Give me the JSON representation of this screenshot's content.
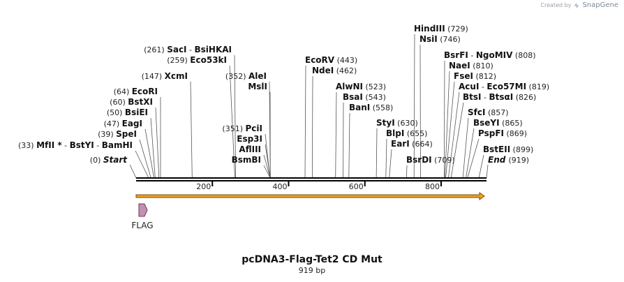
{
  "credit": {
    "prefix": "Created by",
    "brand": "SnapGene"
  },
  "title": "pcDNA3-Flag-Tet2 CD Mut",
  "subtitle": "919 bp",
  "sequence_length": 919,
  "colors": {
    "backbone": "#000000",
    "arrow_fill": "#f0a020",
    "arrow_border": "#7a4f10",
    "flag_fill": "#c490b0",
    "flag_border": "#6a3a5a"
  },
  "start_label": {
    "position": "(0)",
    "name": "Start"
  },
  "end_label": {
    "name": "End",
    "position": "(919)"
  },
  "ticks": [
    {
      "bp": 200,
      "label": "200"
    },
    {
      "bp": 400,
      "label": "400"
    },
    {
      "bp": 600,
      "label": "600"
    },
    {
      "bp": 800,
      "label": "800"
    }
  ],
  "sites": [
    {
      "id": "s1",
      "parts": [
        {
          "t": "(33)",
          "k": "pos"
        },
        {
          "t": "MfII *",
          "k": "name"
        },
        {
          "t": " - ",
          "k": "pos"
        },
        {
          "t": "BstYI",
          "k": "name"
        },
        {
          "t": " - ",
          "k": "pos"
        },
        {
          "t": "BamHI",
          "k": "name"
        }
      ],
      "cut": 33
    },
    {
      "id": "s2",
      "parts": [
        {
          "t": "(39)",
          "k": "pos"
        },
        {
          "t": "SpeI",
          "k": "name"
        }
      ],
      "cut": 39
    },
    {
      "id": "s3",
      "parts": [
        {
          "t": "(47)",
          "k": "pos"
        },
        {
          "t": "EagI",
          "k": "name"
        }
      ],
      "cut": 47
    },
    {
      "id": "s4",
      "parts": [
        {
          "t": "(50)",
          "k": "pos"
        },
        {
          "t": "BsiEI",
          "k": "name"
        }
      ],
      "cut": 50
    },
    {
      "id": "s5",
      "parts": [
        {
          "t": "(60)",
          "k": "pos"
        },
        {
          "t": "BstXI",
          "k": "name"
        }
      ],
      "cut": 60
    },
    {
      "id": "s6",
      "parts": [
        {
          "t": "(64)",
          "k": "pos"
        },
        {
          "t": "EcoRI",
          "k": "name"
        }
      ],
      "cut": 64
    },
    {
      "id": "s7",
      "parts": [
        {
          "t": "(147)",
          "k": "pos"
        },
        {
          "t": "XcmI",
          "k": "name"
        }
      ],
      "cut": 147
    },
    {
      "id": "s8",
      "parts": [
        {
          "t": "(259)",
          "k": "pos"
        },
        {
          "t": "Eco53kI",
          "k": "name"
        }
      ],
      "cut": 259
    },
    {
      "id": "s9",
      "parts": [
        {
          "t": "(261)",
          "k": "pos"
        },
        {
          "t": "SacI",
          "k": "name"
        },
        {
          "t": " - ",
          "k": "pos"
        },
        {
          "t": "BsiHKAI",
          "k": "name"
        }
      ],
      "cut": 261
    },
    {
      "id": "s10",
      "parts": [
        {
          "t": "(351)",
          "k": "pos"
        },
        {
          "t": "PciI",
          "k": "name"
        }
      ],
      "cut": 351
    },
    {
      "id": "s11",
      "parts": [
        {
          "t": "Esp3I",
          "k": "name"
        }
      ],
      "cut": 352
    },
    {
      "id": "s12",
      "parts": [
        {
          "t": "AflIII",
          "k": "name"
        }
      ],
      "cut": 352
    },
    {
      "id": "s13",
      "parts": [
        {
          "t": "BsmBI",
          "k": "name"
        }
      ],
      "cut": 352
    },
    {
      "id": "s14",
      "parts": [
        {
          "t": "(352)",
          "k": "pos"
        },
        {
          "t": "AleI",
          "k": "name"
        }
      ],
      "cut": 352
    },
    {
      "id": "s15",
      "parts": [
        {
          "t": "MslI",
          "k": "name"
        }
      ],
      "cut": 352
    },
    {
      "id": "s16",
      "parts": [
        {
          "t": "EcoRV",
          "k": "name"
        },
        {
          "t": "(443)",
          "k": "pos"
        }
      ],
      "cut": 443
    },
    {
      "id": "s17",
      "parts": [
        {
          "t": "NdeI",
          "k": "name"
        },
        {
          "t": "(462)",
          "k": "pos"
        }
      ],
      "cut": 462
    },
    {
      "id": "s18",
      "parts": [
        {
          "t": "AlwNI",
          "k": "name"
        },
        {
          "t": "(523)",
          "k": "pos"
        }
      ],
      "cut": 523
    },
    {
      "id": "s19",
      "parts": [
        {
          "t": "BsaI",
          "k": "name"
        },
        {
          "t": "(543)",
          "k": "pos"
        }
      ],
      "cut": 543
    },
    {
      "id": "s20",
      "parts": [
        {
          "t": "BanI",
          "k": "name"
        },
        {
          "t": "(558)",
          "k": "pos"
        }
      ],
      "cut": 558
    },
    {
      "id": "s21",
      "parts": [
        {
          "t": "StyI",
          "k": "name"
        },
        {
          "t": "(630)",
          "k": "pos"
        }
      ],
      "cut": 630
    },
    {
      "id": "s22",
      "parts": [
        {
          "t": "BlpI",
          "k": "name"
        },
        {
          "t": "(655)",
          "k": "pos"
        }
      ],
      "cut": 655
    },
    {
      "id": "s23",
      "parts": [
        {
          "t": "EarI",
          "k": "name"
        },
        {
          "t": "(664)",
          "k": "pos"
        }
      ],
      "cut": 664
    },
    {
      "id": "s24",
      "parts": [
        {
          "t": "BsrDI",
          "k": "name"
        },
        {
          "t": "(709)",
          "k": "pos"
        }
      ],
      "cut": 709
    },
    {
      "id": "s25",
      "parts": [
        {
          "t": "HindIII",
          "k": "name"
        },
        {
          "t": "(729)",
          "k": "pos"
        }
      ],
      "cut": 729
    },
    {
      "id": "s26",
      "parts": [
        {
          "t": "NsiI",
          "k": "name"
        },
        {
          "t": "(746)",
          "k": "pos"
        }
      ],
      "cut": 746
    },
    {
      "id": "s27",
      "parts": [
        {
          "t": "BsrFI",
          "k": "name"
        },
        {
          "t": " - ",
          "k": "pos"
        },
        {
          "t": "NgoMIV",
          "k": "name"
        },
        {
          "t": "(808)",
          "k": "pos"
        }
      ],
      "cut": 808
    },
    {
      "id": "s28",
      "parts": [
        {
          "t": "NaeI",
          "k": "name"
        },
        {
          "t": "(810)",
          "k": "pos"
        }
      ],
      "cut": 810
    },
    {
      "id": "s29",
      "parts": [
        {
          "t": "FseI",
          "k": "name"
        },
        {
          "t": "(812)",
          "k": "pos"
        }
      ],
      "cut": 812
    },
    {
      "id": "s30",
      "parts": [
        {
          "t": "AcuI",
          "k": "name"
        },
        {
          "t": " - ",
          "k": "pos"
        },
        {
          "t": "Eco57MI",
          "k": "name"
        },
        {
          "t": "(819)",
          "k": "pos"
        }
      ],
      "cut": 819
    },
    {
      "id": "s31",
      "parts": [
        {
          "t": "BtsI",
          "k": "name"
        },
        {
          "t": " - ",
          "k": "pos"
        },
        {
          "t": "BtsαI",
          "k": "name"
        },
        {
          "t": "(826)",
          "k": "pos"
        }
      ],
      "cut": 826
    },
    {
      "id": "s32",
      "parts": [
        {
          "t": "SfcI",
          "k": "name"
        },
        {
          "t": "(857)",
          "k": "pos"
        }
      ],
      "cut": 857
    },
    {
      "id": "s33",
      "parts": [
        {
          "t": "BseYI",
          "k": "name"
        },
        {
          "t": "(865)",
          "k": "pos"
        }
      ],
      "cut": 865
    },
    {
      "id": "s34",
      "parts": [
        {
          "t": "PspFI",
          "k": "name"
        },
        {
          "t": "(869)",
          "k": "pos"
        }
      ],
      "cut": 869
    },
    {
      "id": "s35",
      "parts": [
        {
          "t": "BstEII",
          "k": "name"
        },
        {
          "t": "(899)",
          "k": "pos"
        }
      ],
      "cut": 899
    }
  ],
  "features": [
    {
      "id": "orf",
      "type": "arrow",
      "label": "",
      "start": 0,
      "end": 919
    },
    {
      "id": "flag",
      "type": "feature",
      "label": "FLAG",
      "start": 1,
      "end": 24
    }
  ]
}
